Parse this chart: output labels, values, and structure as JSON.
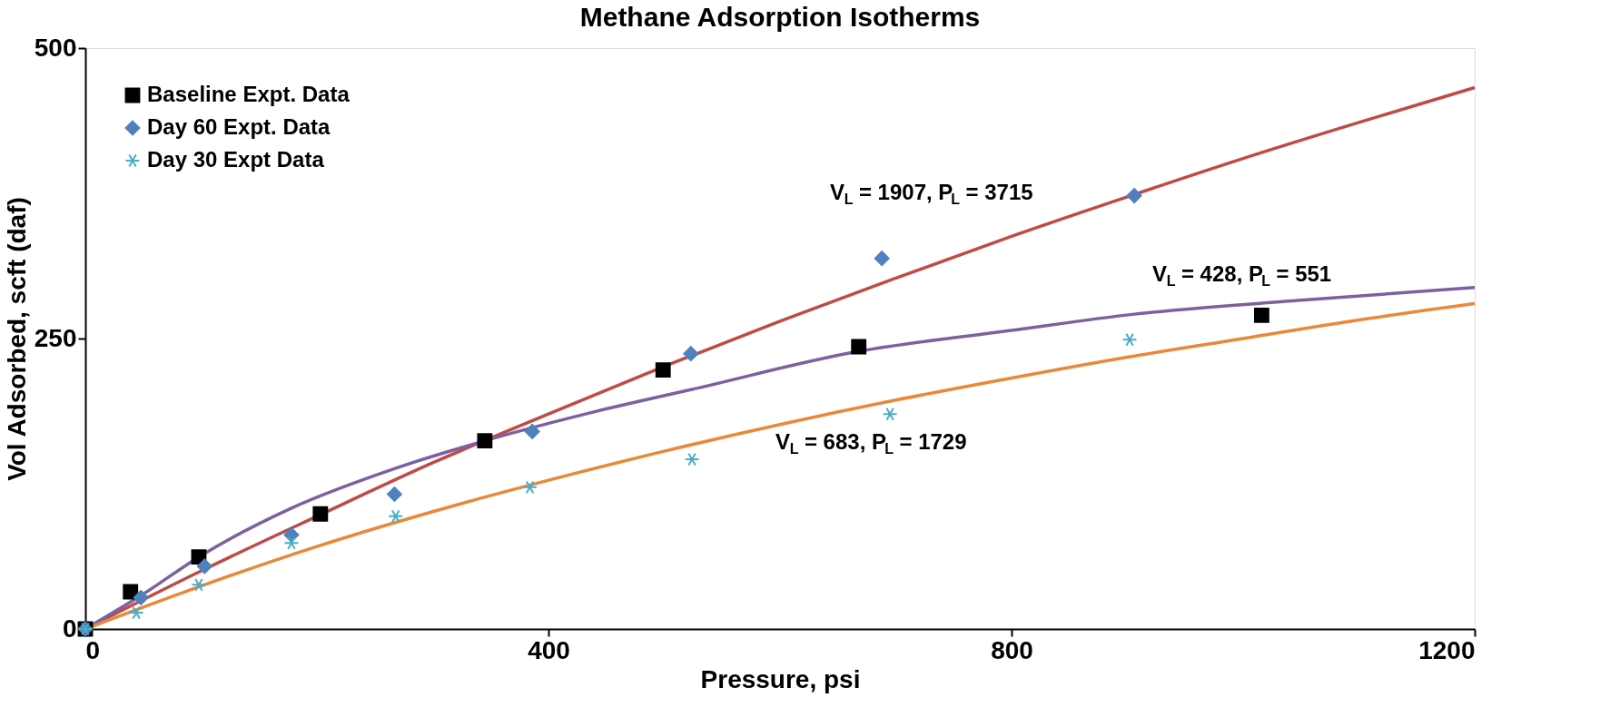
{
  "chart_data": {
    "type": "scatter",
    "title": "Methane Adsorption Isotherms",
    "xlabel": "Pressure, psi",
    "ylabel": "Vol Adsorbed, scft (daf)",
    "xlim": [
      0,
      1200
    ],
    "xticks": [
      0,
      400,
      800,
      1200
    ],
    "ylim": [
      0,
      500
    ],
    "yticks": [
      0,
      250,
      500
    ],
    "grid": false,
    "legend": "top left",
    "series": [
      {
        "name": "Baseline Expt. Data",
        "color": "#000000",
        "marker": "square",
        "x": [
          0,
          39,
          98,
          203,
          345,
          499,
          668,
          1016
        ],
        "values": [
          0,
          32,
          62,
          99,
          162,
          223,
          243,
          270
        ]
      },
      {
        "name": "Day 60 Expt. Data",
        "color": "#4f81bd",
        "marker": "diamond",
        "x": [
          0,
          48,
          103,
          178,
          267,
          386,
          523,
          688,
          906
        ],
        "values": [
          0,
          27,
          54,
          81,
          116,
          170,
          237,
          319,
          373
        ]
      },
      {
        "name": "Day 30 Expt Data",
        "color": "#4bacc6",
        "marker": "cross",
        "x": [
          0,
          44,
          98,
          178,
          268,
          384,
          524,
          695,
          902
        ],
        "values": [
          0,
          14,
          38,
          74,
          97,
          122,
          146,
          185,
          249
        ]
      },
      {
        "type": "line",
        "color": "#be4b48",
        "marker": "none",
        "x": [
          0,
          100,
          200,
          300,
          400,
          500,
          600,
          700,
          800,
          900,
          1000,
          1100,
          1200
        ],
        "values": [
          0,
          50,
          97,
          143,
          185,
          226,
          265,
          302,
          338,
          372,
          405,
          436,
          466
        ]
      },
      {
        "type": "line",
        "color": "#7d60a0",
        "marker": "none",
        "x": [
          0,
          50,
          98,
          178,
          267,
          345,
          440,
          523,
          668,
          800,
          906,
          1050,
          1200
        ],
        "values": [
          0,
          30,
          62,
          104,
          138,
          162,
          187,
          206,
          239,
          257,
          271,
          283,
          294
        ]
      },
      {
        "type": "line",
        "color": "#e9883a",
        "marker": "none",
        "x": [
          0,
          100,
          200,
          300,
          400,
          500,
          600,
          700,
          800,
          900,
          1000,
          1100,
          1200
        ],
        "values": [
          0,
          37,
          71,
          101,
          128,
          153,
          176,
          197,
          216,
          234,
          250,
          266,
          280
        ]
      }
    ],
    "annotations": [
      "V$_{L}$ = 1907, P$_{L}$ = 3715",
      "V$_{L}$ = 428, P$_{L}$ = 551",
      "V$_{L}$ = 683, P$_{L}$ = 1729"
    ]
  }
}
